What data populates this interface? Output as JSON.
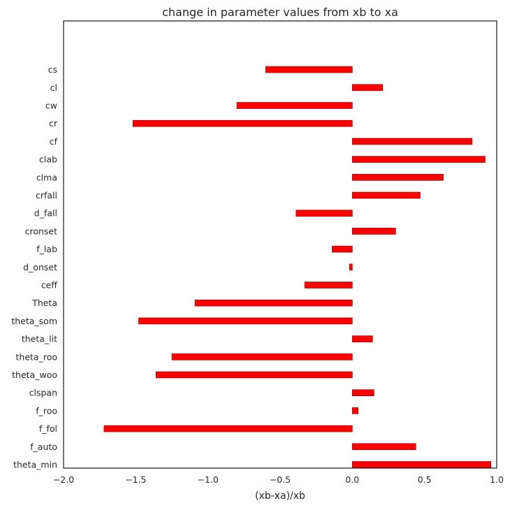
{
  "chart_data": {
    "type": "bar",
    "orientation": "horizontal",
    "title": "change in parameter values from xb to xa",
    "xlabel": "(xb-xa)/xb",
    "ylabel": "",
    "xlim": [
      -2.0,
      1.0
    ],
    "xticks": [
      "−2.0",
      "−1.5",
      "−1.0",
      "−0.5",
      "0.0",
      "0.5",
      "1.0"
    ],
    "xtick_values": [
      -2.0,
      -1.5,
      -1.0,
      -0.5,
      0.0,
      0.5,
      1.0
    ],
    "grid": false,
    "bar_color": "#ff0000",
    "bar_edge_color": "#8b0000",
    "categories": [
      "theta_min",
      "f_auto",
      "f_fol",
      "f_roo",
      "clspan",
      "theta_woo",
      "theta_roo",
      "theta_lit",
      "theta_som",
      "Theta",
      "ceff",
      "d_onset",
      "f_lab",
      "cronset",
      "d_fall",
      "crfall",
      "clma",
      "clab",
      "cf",
      "cr",
      "cw",
      "cl",
      "cs"
    ],
    "values": [
      0.96,
      0.44,
      -1.72,
      0.04,
      0.15,
      -1.36,
      -1.25,
      0.14,
      -1.48,
      -1.09,
      -0.33,
      -0.02,
      -0.14,
      0.3,
      -0.39,
      0.47,
      0.63,
      0.92,
      0.83,
      -1.52,
      -0.8,
      0.21,
      -0.6
    ]
  }
}
